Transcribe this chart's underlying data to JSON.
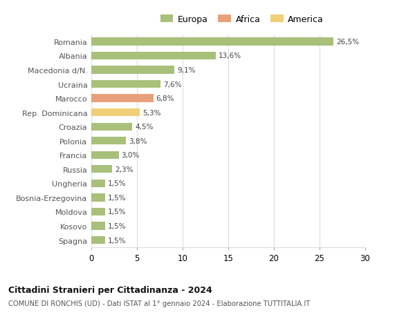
{
  "categories": [
    "Romania",
    "Albania",
    "Macedonia d/N.",
    "Ucraina",
    "Marocco",
    "Rep. Dominicana",
    "Croazia",
    "Polonia",
    "Francia",
    "Russia",
    "Ungheria",
    "Bosnia-Erzegovina",
    "Moldova",
    "Kosovo",
    "Spagna"
  ],
  "values": [
    26.5,
    13.6,
    9.1,
    7.6,
    6.8,
    5.3,
    4.5,
    3.8,
    3.0,
    2.3,
    1.5,
    1.5,
    1.5,
    1.5,
    1.5
  ],
  "labels": [
    "26,5%",
    "13,6%",
    "9,1%",
    "7,6%",
    "6,8%",
    "5,3%",
    "4,5%",
    "3,8%",
    "3,0%",
    "2,3%",
    "1,5%",
    "1,5%",
    "1,5%",
    "1,5%",
    "1,5%"
  ],
  "colors": [
    "#a8c07a",
    "#a8c07a",
    "#a8c07a",
    "#a8c07a",
    "#e8a07a",
    "#f0cf78",
    "#a8c07a",
    "#a8c07a",
    "#a8c07a",
    "#a8c07a",
    "#a8c07a",
    "#a8c07a",
    "#a8c07a",
    "#a8c07a",
    "#a8c07a"
  ],
  "legend_labels": [
    "Europa",
    "Africa",
    "America"
  ],
  "legend_colors": [
    "#a8c07a",
    "#e8a07a",
    "#f0cf78"
  ],
  "title": "Cittadini Stranieri per Cittadinanza - 2024",
  "subtitle": "COMUNE DI RONCHIS (UD) - Dati ISTAT al 1° gennaio 2024 - Elaborazione TUTTITALIA.IT",
  "xlim": [
    0,
    30
  ],
  "xticks": [
    0,
    5,
    10,
    15,
    20,
    25,
    30
  ],
  "background_color": "#ffffff",
  "grid_color": "#dddddd",
  "bar_height": 0.55
}
